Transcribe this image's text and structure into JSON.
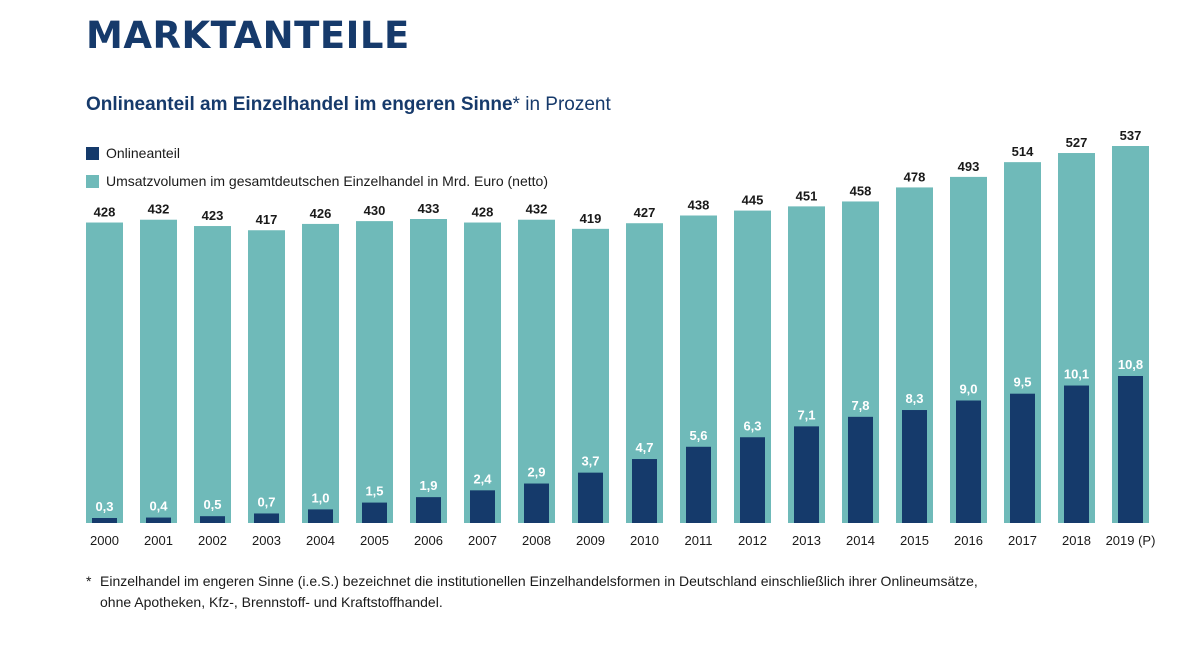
{
  "header": {
    "title": "MARKTANTEILE",
    "subtitle_bold": "Onlineanteil am Einzelhandel im engeren Sinne",
    "subtitle_star": "*",
    "subtitle_rest": " in Prozent"
  },
  "colors": {
    "title": "#163a6b",
    "online": "#153a6b",
    "volume": "#6fbab9"
  },
  "legend": {
    "online_label": "Onlineanteil",
    "volume_label": "Umsatzvolumen im gesamtdeutschen Einzelhandel in Mrd. Euro (netto)"
  },
  "chart_data": {
    "type": "bar",
    "categories": [
      "2000",
      "2001",
      "2002",
      "2003",
      "2004",
      "2005",
      "2006",
      "2007",
      "2008",
      "2009",
      "2010",
      "2011",
      "2012",
      "2013",
      "2014",
      "2015",
      "2016",
      "2017",
      "2018",
      "2019 (P)"
    ],
    "series": [
      {
        "name": "Umsatzvolumen im gesamtdeutschen Einzelhandel in Mrd. Euro (netto)",
        "values": [
          428,
          432,
          423,
          417,
          426,
          430,
          433,
          428,
          432,
          419,
          427,
          438,
          445,
          451,
          458,
          478,
          493,
          514,
          527,
          537
        ],
        "labels": [
          "428",
          "432",
          "423",
          "417",
          "426",
          "430",
          "433",
          "428",
          "432",
          "419",
          "427",
          "438",
          "445",
          "451",
          "458",
          "478",
          "493",
          "514",
          "527",
          "537"
        ]
      },
      {
        "name": "Onlineanteil",
        "values": [
          0.3,
          0.4,
          0.5,
          0.7,
          1.0,
          1.5,
          1.9,
          2.4,
          2.9,
          3.7,
          4.7,
          5.6,
          6.3,
          7.1,
          7.8,
          8.3,
          9.0,
          9.5,
          10.1,
          10.8
        ],
        "labels": [
          "0,3",
          "0,4",
          "0,5",
          "0,7",
          "1,0",
          "1,5",
          "1,9",
          "2,4",
          "2,9",
          "3,7",
          "4,7",
          "5,6",
          "6,3",
          "7,1",
          "7,8",
          "8,3",
          "9,0",
          "9,5",
          "10,1",
          "10,8"
        ]
      }
    ],
    "title": "Onlineanteil am Einzelhandel im engeren Sinne* in Prozent",
    "xlabel": "",
    "ylabel": "",
    "volume_ylim": [
      0,
      537
    ],
    "online_ylim": [
      0,
      10.8
    ],
    "legend_position": "top-left"
  },
  "footnote": {
    "marker": "*",
    "text": "Einzelhandel im engeren Sinne (i.e.S.) bezeichnet die institutionellen Einzelhandelsformen in Deutschland einschließlich ihrer Onlineumsätze, ohne Apotheken, Kfz-, Brennstoff- und Kraftstoffhandel."
  }
}
